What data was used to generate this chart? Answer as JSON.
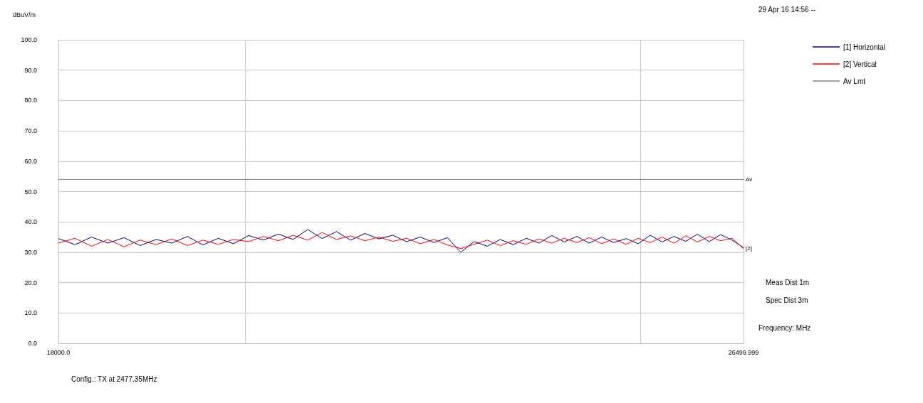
{
  "chart_data": {
    "type": "line",
    "ylabel": "dBuV/m",
    "xlabel": "Frequency: MHz",
    "log": "x",
    "x": [
      18000,
      18170,
      18340,
      18510,
      18680,
      18850,
      19020,
      19190,
      19360,
      19530,
      19700,
      19870,
      20040,
      20210,
      20380,
      20550,
      20720,
      20890,
      21060,
      21230,
      21400,
      21570,
      21740,
      21910,
      22080,
      22250,
      22420,
      22590,
      22760,
      22930,
      23100,
      23270,
      23440,
      23610,
      23780,
      23950,
      24120,
      24290,
      24460,
      24630,
      24800,
      24970,
      25140,
      25310,
      25480,
      25650,
      25820,
      25990,
      26160,
      26330,
      26499.999
    ],
    "series": [
      {
        "name": "[1] Horizontal",
        "color": "#000080",
        "values": [
          34.5,
          32.5,
          35.0,
          33.0,
          34.8,
          32.2,
          34.2,
          33.0,
          35.2,
          32.4,
          34.6,
          32.8,
          35.5,
          34.0,
          36.0,
          34.2,
          37.5,
          34.5,
          36.8,
          34.0,
          36.2,
          34.4,
          35.6,
          33.5,
          35.0,
          33.2,
          34.8,
          30.0,
          33.5,
          32.0,
          34.2,
          32.5,
          34.6,
          33.0,
          35.5,
          33.4,
          35.2,
          33.0,
          35.0,
          33.2,
          34.5,
          32.8,
          35.6,
          33.4,
          35.2,
          33.6,
          36.0,
          33.5,
          35.8,
          34.0,
          31.5
        ]
      },
      {
        "name": "[2] Vertical",
        "color": "#ff0000",
        "values": [
          33.0,
          34.6,
          32.0,
          34.2,
          31.8,
          34.0,
          32.5,
          34.4,
          32.2,
          34.0,
          32.6,
          34.2,
          33.5,
          35.2,
          33.8,
          35.6,
          34.0,
          36.5,
          34.2,
          35.4,
          33.8,
          35.0,
          33.6,
          34.6,
          32.8,
          34.2,
          32.4,
          31.2,
          32.6,
          34.0,
          32.2,
          33.8,
          32.6,
          34.4,
          33.0,
          34.6,
          33.2,
          34.8,
          32.8,
          34.4,
          32.6,
          34.6,
          33.2,
          35.0,
          33.0,
          35.4,
          33.4,
          35.2,
          33.8,
          34.6,
          31.2
        ]
      },
      {
        "name": "Av Lmt",
        "color": "#808080",
        "x": [
          18000,
          26499.999
        ],
        "values": [
          54,
          54
        ]
      }
    ],
    "xlim": [
      18000,
      26499.999
    ],
    "xticks": [
      {
        "value": 18000,
        "label": "18000.0"
      },
      {
        "value": 20000,
        "label": null
      },
      {
        "value": 25000,
        "label": null
      },
      26499.999
    ],
    "ylim": [
      0,
      100
    ],
    "yticks": [
      {
        "value": 0,
        "label": "0.0"
      },
      {
        "value": 10,
        "label": "10.0"
      },
      {
        "value": 20,
        "label": "20.0"
      },
      {
        "value": 30,
        "label": "30.0"
      },
      {
        "value": 40,
        "label": "40.0"
      },
      {
        "value": 50,
        "label": "50.0"
      },
      {
        "value": 60,
        "label": "60.0"
      },
      {
        "value": 70,
        "label": "70.0"
      },
      {
        "value": 80,
        "label": "80.0"
      },
      {
        "value": 90,
        "label": "90.0"
      },
      {
        "value": 100,
        "label": "100.0"
      }
    ],
    "grid": true,
    "legend": "top right",
    "marker": "none",
    "line_style": "solid",
    "annotations": [
      {
        "text": "Av",
        "x": 26499.999,
        "y": 54
      },
      {
        "text": "[2]",
        "x": 26499.999,
        "y": 31.2
      },
      "29 Apr 16 14:56 --",
      "Meas Dist 1m",
      "Spec Dist 3m",
      "Config.: TX at 2477.35MHz"
    ]
  }
}
